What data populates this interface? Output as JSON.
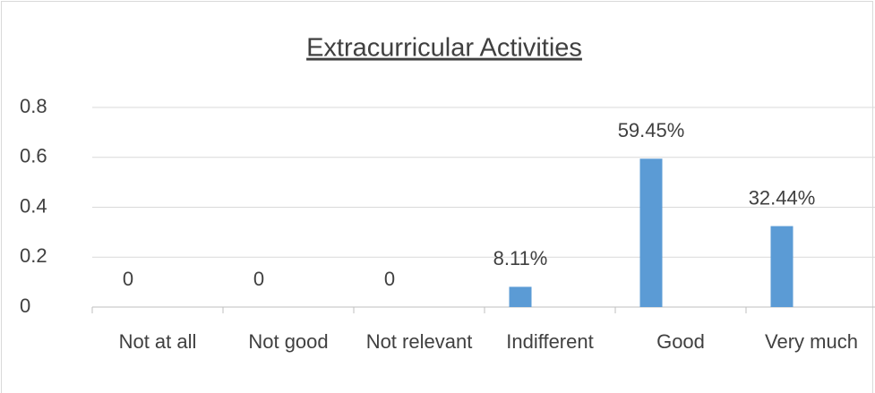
{
  "chart_data": {
    "type": "bar",
    "title": "Extracurricular Activities",
    "categories": [
      "Not at all",
      "Not good",
      "Not relevant",
      "Indifferent",
      "Good",
      "Very much"
    ],
    "values": [
      0,
      0,
      0,
      0.0811,
      0.5945,
      0.3244
    ],
    "value_labels": [
      "0",
      "0",
      "0",
      "8.11%",
      "59.45%",
      "32.44%"
    ],
    "color": "#5b9bd5",
    "ylim": [
      0,
      0.8
    ],
    "yticks": [
      0,
      0.2,
      0.4,
      0.6,
      0.8
    ],
    "grid": true
  }
}
